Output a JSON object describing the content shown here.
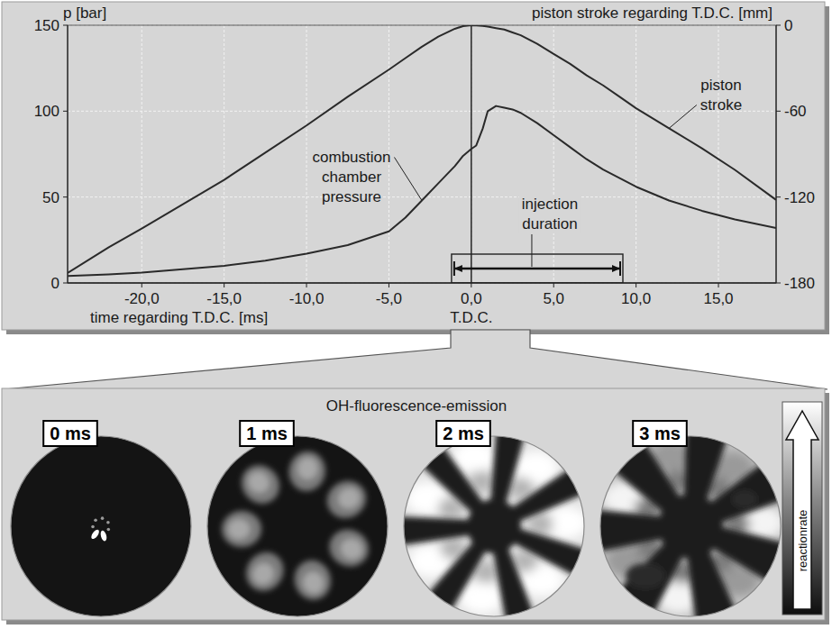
{
  "chart_data": {
    "type": "line",
    "x_label": "time regarding T.D.C. [ms]",
    "y_label": "p [bar]",
    "y2_label": "piston stroke regarding T.D.C. [mm]",
    "x": [
      -24.5,
      -22,
      -20,
      -17.5,
      -15,
      -12.5,
      -10,
      -7.5,
      -5,
      -4,
      -3,
      -2,
      -1,
      -0.5,
      0,
      0.3,
      0.7,
      1,
      1.5,
      2,
      2.5,
      3,
      4,
      5,
      6,
      7,
      8,
      9,
      10,
      12,
      14,
      16,
      18.5
    ],
    "series": [
      {
        "name": "combustion chamber pressure",
        "color": "#2a2a2a",
        "values": [
          4,
          5,
          6,
          8,
          10,
          13,
          17,
          22,
          30,
          38,
          48,
          58,
          68,
          74,
          78,
          80,
          90,
          100,
          103,
          102,
          101,
          99,
          93,
          86,
          79,
          72,
          66,
          61,
          56,
          48,
          42,
          37,
          32
        ]
      },
      {
        "name": "piston stroke",
        "color": "#2a2a2a",
        "axis": "y2",
        "values": [
          -173,
          -155,
          -142,
          -125,
          -108,
          -89,
          -70,
          -50,
          -31,
          -23,
          -15,
          -8,
          -2.5,
          -0.6,
          0,
          -0.1,
          -0.5,
          -1,
          -2,
          -3,
          -5,
          -7,
          -13,
          -20,
          -27,
          -35,
          -42,
          -50,
          -58,
          -72,
          -86,
          -101,
          -122
        ]
      }
    ],
    "xlim": [
      -24.5,
      18.5
    ],
    "xticks": [
      {
        "value": -20,
        "label": "-20,0"
      },
      {
        "value": -15,
        "label": "-15,0"
      },
      {
        "value": -10,
        "label": "-10,0"
      },
      {
        "value": -5,
        "label": "-5,0"
      },
      {
        "value": 0,
        "label": "0,0"
      },
      {
        "value": 5,
        "label": "5,0"
      },
      {
        "value": 10,
        "label": "10,0"
      },
      {
        "value": 15,
        "label": "15,0"
      }
    ],
    "ylim": [
      0,
      150
    ],
    "yticks": [
      0,
      50,
      100,
      150
    ],
    "y2lim": [
      -180,
      0
    ],
    "y2ticks": [
      -180,
      -120,
      -60,
      0
    ],
    "grid": true,
    "annotations": [
      {
        "label": "T.D.C.",
        "x": 0
      },
      {
        "label": "injection duration",
        "x_start": -1.2,
        "x_end": 9.2
      }
    ]
  },
  "images_panel": {
    "title": "OH-fluorescence-emission",
    "images": [
      "0 ms",
      "1 ms",
      "2 ms",
      "3 ms"
    ],
    "colorbar_label": "reactionrate"
  }
}
